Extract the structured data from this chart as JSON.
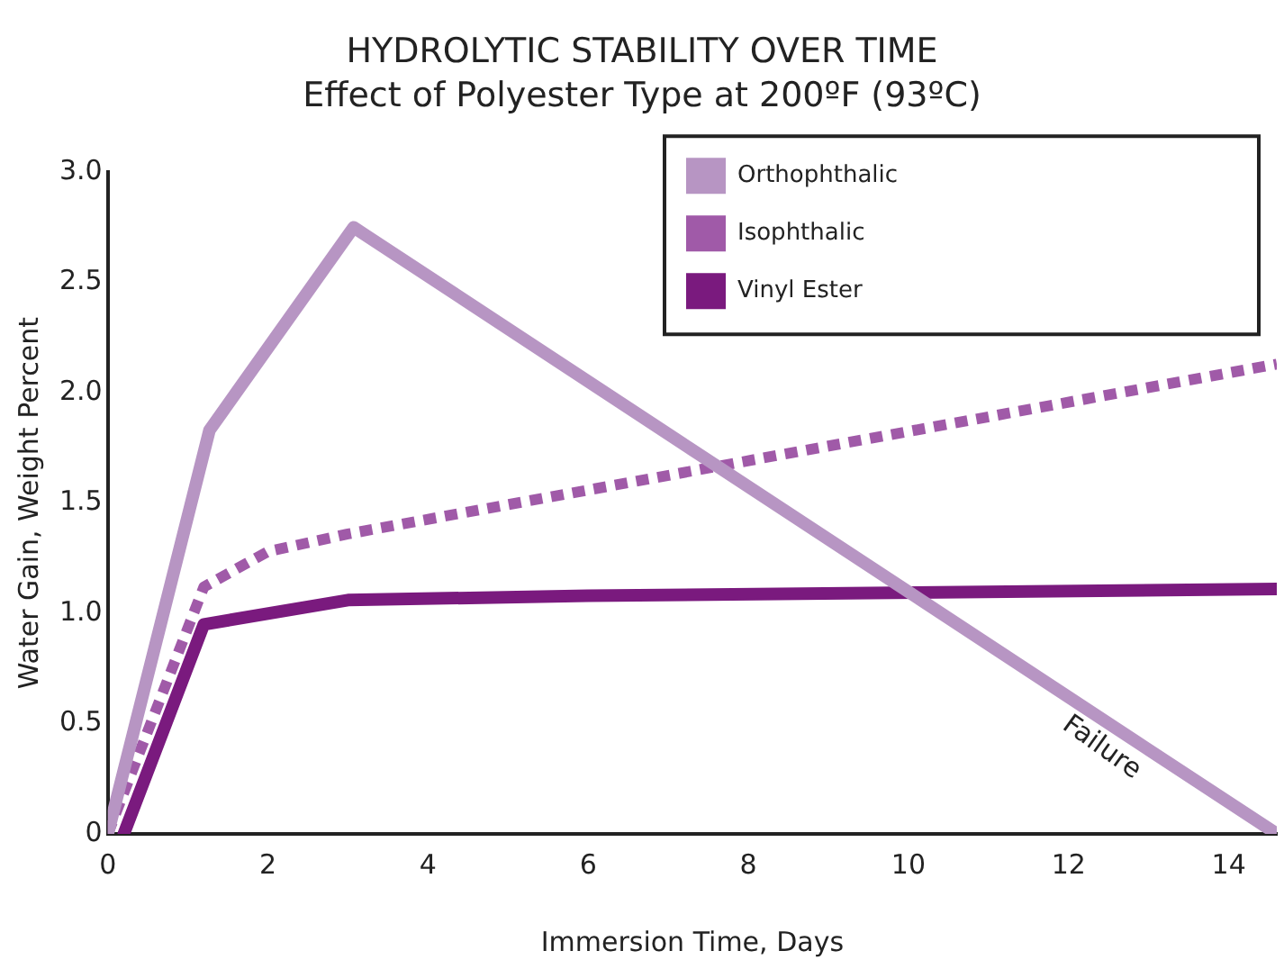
{
  "chart_data": {
    "type": "line",
    "title": "HYDROLYTIC STABILITY OVER TIME",
    "subtitle": "Effect of Polyester Type at 200ºF (93ºC)",
    "xlabel": "Immersion Time, Days",
    "ylabel": "Water Gain, Weight Percent",
    "series": [
      {
        "name": "Orthophthalic",
        "color": "#b795c3",
        "line_style": "solid",
        "x": [
          0,
          1.27,
          3.07,
          14.6
        ],
        "values": [
          0,
          1.83,
          2.75,
          0
        ]
      },
      {
        "name": "Isophthalic",
        "color": "#a05aa8",
        "line_style": "dotted",
        "x": [
          0,
          1.2,
          2,
          3,
          14.6
        ],
        "values": [
          0,
          1.12,
          1.28,
          1.36,
          2.13
        ]
      },
      {
        "name": "Vinyl Ester",
        "color": "#7a1a7e",
        "line_style": "solid",
        "x": [
          0.2,
          1.2,
          3,
          6,
          14.6
        ],
        "values": [
          0,
          0.95,
          1.06,
          1.08,
          1.11
        ]
      }
    ],
    "xlim": [
      0,
      14.6
    ],
    "xticks": [
      0,
      2,
      4,
      6,
      8,
      10,
      12,
      14
    ],
    "ylim": [
      0,
      3
    ],
    "yticks": [
      0,
      {
        "value": 0.5,
        "label": "0.5"
      },
      {
        "value": 1,
        "label": "1.0"
      },
      {
        "value": 1.5,
        "label": "1.5"
      },
      {
        "value": 2,
        "label": "2.0"
      },
      {
        "value": 2.5,
        "label": "2.5"
      },
      {
        "value": 3,
        "label": "3.0"
      }
    ],
    "annotations": [
      "Failure"
    ],
    "grid": false,
    "legend": "top right",
    "marker": "none"
  }
}
